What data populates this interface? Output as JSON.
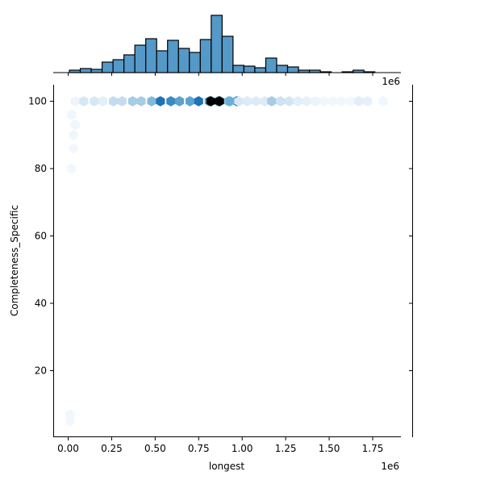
{
  "chart_data": {
    "type": "hexbin-jointplot",
    "title": "",
    "xlabel": "longest",
    "ylabel": "Completeness_Specific",
    "x_offset_label": "1e6",
    "top_marginal_offset_label": "1e6",
    "xlim": [
      -0.08,
      1.9
    ],
    "ylim": [
      1,
      105
    ],
    "x_ticks": [
      0.0,
      0.25,
      0.5,
      0.75,
      1.0,
      1.25,
      1.5,
      1.75
    ],
    "x_tick_labels": [
      "0.00",
      "0.25",
      "0.50",
      "0.75",
      "1.00",
      "1.25",
      "1.50",
      "1.75"
    ],
    "y_ticks": [
      20,
      40,
      60,
      80,
      100
    ],
    "y_tick_labels": [
      "20",
      "40",
      "60",
      "80",
      "100"
    ],
    "grid": false,
    "colormap": "Blues",
    "marginal_x_histogram": {
      "color": "#5499c7",
      "edgecolor": "#000000",
      "bin_width": 0.0627,
      "bin_start": 0.0,
      "heights_relative": [
        3,
        5,
        4,
        13,
        16,
        22,
        34,
        42,
        27,
        40,
        30,
        25,
        41,
        71,
        45,
        9,
        8,
        6,
        18,
        9,
        7,
        3,
        3,
        1,
        0,
        1,
        3,
        1,
        0
      ]
    },
    "marginal_y_histogram": {
      "visible_bars": false
    },
    "hexbins": [
      {
        "x": 0.04,
        "y": 100,
        "intensity": 0.05
      },
      {
        "x": 0.09,
        "y": 100,
        "intensity": 0.15
      },
      {
        "x": 0.15,
        "y": 100,
        "intensity": 0.15
      },
      {
        "x": 0.2,
        "y": 100,
        "intensity": 0.1
      },
      {
        "x": 0.26,
        "y": 100,
        "intensity": 0.25
      },
      {
        "x": 0.31,
        "y": 100,
        "intensity": 0.25
      },
      {
        "x": 0.37,
        "y": 100,
        "intensity": 0.35
      },
      {
        "x": 0.42,
        "y": 100,
        "intensity": 0.35
      },
      {
        "x": 0.48,
        "y": 100,
        "intensity": 0.45
      },
      {
        "x": 0.53,
        "y": 100,
        "intensity": 0.75
      },
      {
        "x": 0.59,
        "y": 100,
        "intensity": 0.65
      },
      {
        "x": 0.64,
        "y": 100,
        "intensity": 0.55
      },
      {
        "x": 0.7,
        "y": 100,
        "intensity": 0.55
      },
      {
        "x": 0.75,
        "y": 100,
        "intensity": 0.75
      },
      {
        "x": 0.81,
        "y": 100,
        "intensity": 0.55
      },
      {
        "x": 0.86,
        "y": 100,
        "intensity": 0.55
      },
      {
        "x": 0.92,
        "y": 100,
        "intensity": 0.4
      },
      {
        "x": 0.97,
        "y": 100,
        "intensity": 0.75
      },
      {
        "x": 0.82,
        "y": 100,
        "intensity": 1.0
      },
      {
        "x": 0.87,
        "y": 100,
        "intensity": 1.0
      },
      {
        "x": 0.93,
        "y": 100,
        "intensity": 0.5
      },
      {
        "x": 0.98,
        "y": 100,
        "intensity": 0.15
      },
      {
        "x": 1.03,
        "y": 100,
        "intensity": 0.12
      },
      {
        "x": 1.08,
        "y": 100,
        "intensity": 0.12
      },
      {
        "x": 1.13,
        "y": 100,
        "intensity": 0.12
      },
      {
        "x": 1.17,
        "y": 100,
        "intensity": 0.35
      },
      {
        "x": 1.22,
        "y": 100,
        "intensity": 0.2
      },
      {
        "x": 1.27,
        "y": 100,
        "intensity": 0.18
      },
      {
        "x": 1.32,
        "y": 100,
        "intensity": 0.1
      },
      {
        "x": 1.37,
        "y": 100,
        "intensity": 0.08
      },
      {
        "x": 1.42,
        "y": 100,
        "intensity": 0.06
      },
      {
        "x": 1.47,
        "y": 100,
        "intensity": 0.03
      },
      {
        "x": 1.52,
        "y": 100,
        "intensity": 0.03
      },
      {
        "x": 1.57,
        "y": 100,
        "intensity": 0.03
      },
      {
        "x": 1.62,
        "y": 100,
        "intensity": 0.03
      },
      {
        "x": 1.67,
        "y": 100,
        "intensity": 0.1
      },
      {
        "x": 1.72,
        "y": 100,
        "intensity": 0.08
      },
      {
        "x": 1.81,
        "y": 100,
        "intensity": 0.04
      },
      {
        "x": 0.02,
        "y": 96,
        "intensity": 0.04
      },
      {
        "x": 0.04,
        "y": 93,
        "intensity": 0.04
      },
      {
        "x": 0.03,
        "y": 90,
        "intensity": 0.04
      },
      {
        "x": 0.03,
        "y": 86,
        "intensity": 0.03
      },
      {
        "x": 0.02,
        "y": 80,
        "intensity": 0.03
      },
      {
        "x": 0.01,
        "y": 7,
        "intensity": 0.03
      },
      {
        "x": 0.01,
        "y": 5,
        "intensity": 0.03
      }
    ]
  }
}
